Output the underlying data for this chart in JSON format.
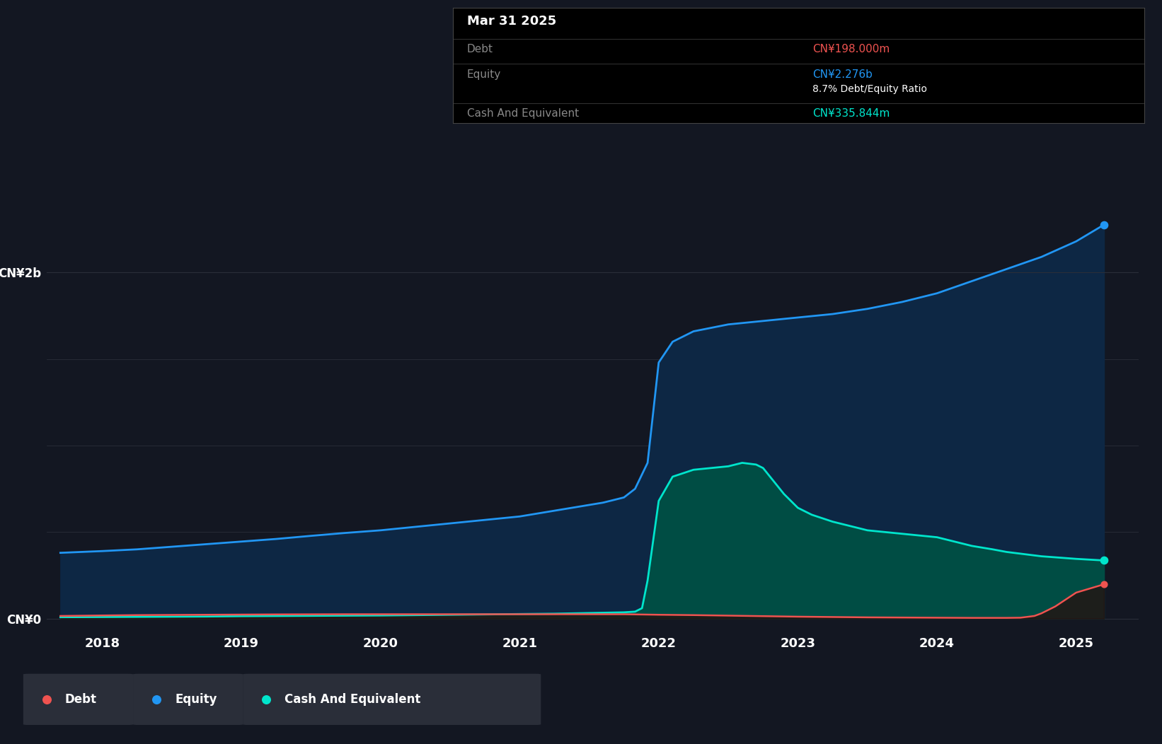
{
  "background_color": "#131722",
  "plot_bg_color": "#131722",
  "grid_color": "#2a2e39",
  "title_box": {
    "date": "Mar 31 2025",
    "debt_label": "Debt",
    "debt_value": "CN¥198.000m",
    "debt_color": "#ef5350",
    "equity_label": "Equity",
    "equity_value": "CN¥2.276b",
    "equity_color": "#2196f3",
    "ratio_text": "8.7% Debt/Equity Ratio",
    "cash_label": "Cash And Equivalent",
    "cash_value": "CN¥335.844m",
    "cash_color": "#00e5cc",
    "box_bg": "#000000",
    "box_border": "#444444"
  },
  "x_ticks": [
    2018,
    2019,
    2020,
    2021,
    2022,
    2023,
    2024,
    2025
  ],
  "y_ticks_labels": [
    "CN¥0",
    "CN¥2b"
  ],
  "y_ticks_values": [
    0,
    2000000000
  ],
  "xlim": [
    2017.6,
    2025.45
  ],
  "ylim": [
    -80000000,
    2500000000
  ],
  "equity": {
    "x": [
      2017.7,
      2018.0,
      2018.25,
      2018.5,
      2018.75,
      2019.0,
      2019.25,
      2019.5,
      2019.75,
      2020.0,
      2020.25,
      2020.5,
      2020.75,
      2021.0,
      2021.15,
      2021.3,
      2021.45,
      2021.6,
      2021.75,
      2021.83,
      2021.92,
      2022.0,
      2022.1,
      2022.25,
      2022.5,
      2022.75,
      2023.0,
      2023.25,
      2023.5,
      2023.75,
      2024.0,
      2024.25,
      2024.5,
      2024.75,
      2025.0,
      2025.2
    ],
    "y": [
      380000000,
      390000000,
      400000000,
      415000000,
      430000000,
      445000000,
      460000000,
      478000000,
      495000000,
      510000000,
      530000000,
      550000000,
      570000000,
      590000000,
      610000000,
      630000000,
      650000000,
      670000000,
      700000000,
      750000000,
      900000000,
      1480000000,
      1600000000,
      1660000000,
      1700000000,
      1720000000,
      1740000000,
      1760000000,
      1790000000,
      1830000000,
      1880000000,
      1950000000,
      2020000000,
      2090000000,
      2180000000,
      2276000000
    ],
    "color": "#2196f3",
    "fill_color": "#0d2744",
    "line_width": 2.0
  },
  "cash": {
    "x": [
      2017.7,
      2018.0,
      2018.25,
      2018.5,
      2018.75,
      2019.0,
      2019.25,
      2019.5,
      2019.75,
      2020.0,
      2020.25,
      2020.5,
      2020.75,
      2021.0,
      2021.25,
      2021.5,
      2021.75,
      2021.83,
      2021.88,
      2021.92,
      2022.0,
      2022.1,
      2022.25,
      2022.5,
      2022.6,
      2022.7,
      2022.75,
      2022.9,
      2023.0,
      2023.1,
      2023.25,
      2023.4,
      2023.5,
      2023.75,
      2024.0,
      2024.1,
      2024.25,
      2024.4,
      2024.5,
      2024.75,
      2025.0,
      2025.2
    ],
    "y": [
      8000000,
      9000000,
      10000000,
      11000000,
      12000000,
      14000000,
      15000000,
      16000000,
      17000000,
      18000000,
      20000000,
      22000000,
      24000000,
      26000000,
      28000000,
      32000000,
      36000000,
      40000000,
      60000000,
      220000000,
      680000000,
      820000000,
      860000000,
      880000000,
      900000000,
      890000000,
      870000000,
      720000000,
      640000000,
      600000000,
      560000000,
      530000000,
      510000000,
      490000000,
      470000000,
      450000000,
      420000000,
      400000000,
      385000000,
      360000000,
      345000000,
      335844000
    ],
    "color": "#00e5cc",
    "fill_color": "#004d44",
    "line_width": 2.0
  },
  "debt": {
    "x": [
      2017.7,
      2018.0,
      2018.25,
      2018.5,
      2018.75,
      2019.0,
      2019.25,
      2019.5,
      2019.75,
      2020.0,
      2020.25,
      2020.5,
      2020.75,
      2021.0,
      2021.25,
      2021.5,
      2021.75,
      2022.0,
      2022.25,
      2022.5,
      2022.75,
      2023.0,
      2023.25,
      2023.5,
      2023.75,
      2024.0,
      2024.25,
      2024.5,
      2024.6,
      2024.7,
      2024.75,
      2024.85,
      2025.0,
      2025.2
    ],
    "y": [
      15000000,
      18000000,
      20000000,
      21000000,
      22000000,
      23000000,
      24000000,
      24500000,
      25000000,
      25000000,
      25000000,
      25000000,
      25000000,
      25000000,
      25000000,
      25000000,
      25000000,
      22000000,
      20000000,
      17000000,
      14000000,
      11000000,
      9000000,
      7000000,
      6000000,
      5000000,
      4000000,
      4000000,
      5000000,
      15000000,
      30000000,
      70000000,
      150000000,
      198000000
    ],
    "color": "#ef5350",
    "fill_color": "#2a0a0a",
    "line_width": 1.8
  },
  "legend": {
    "items": [
      {
        "label": "Debt",
        "color": "#ef5350"
      },
      {
        "label": "Equity",
        "color": "#2196f3"
      },
      {
        "label": "Cash And Equivalent",
        "color": "#00e5cc"
      }
    ],
    "legend_bg": "#2a2e39"
  }
}
